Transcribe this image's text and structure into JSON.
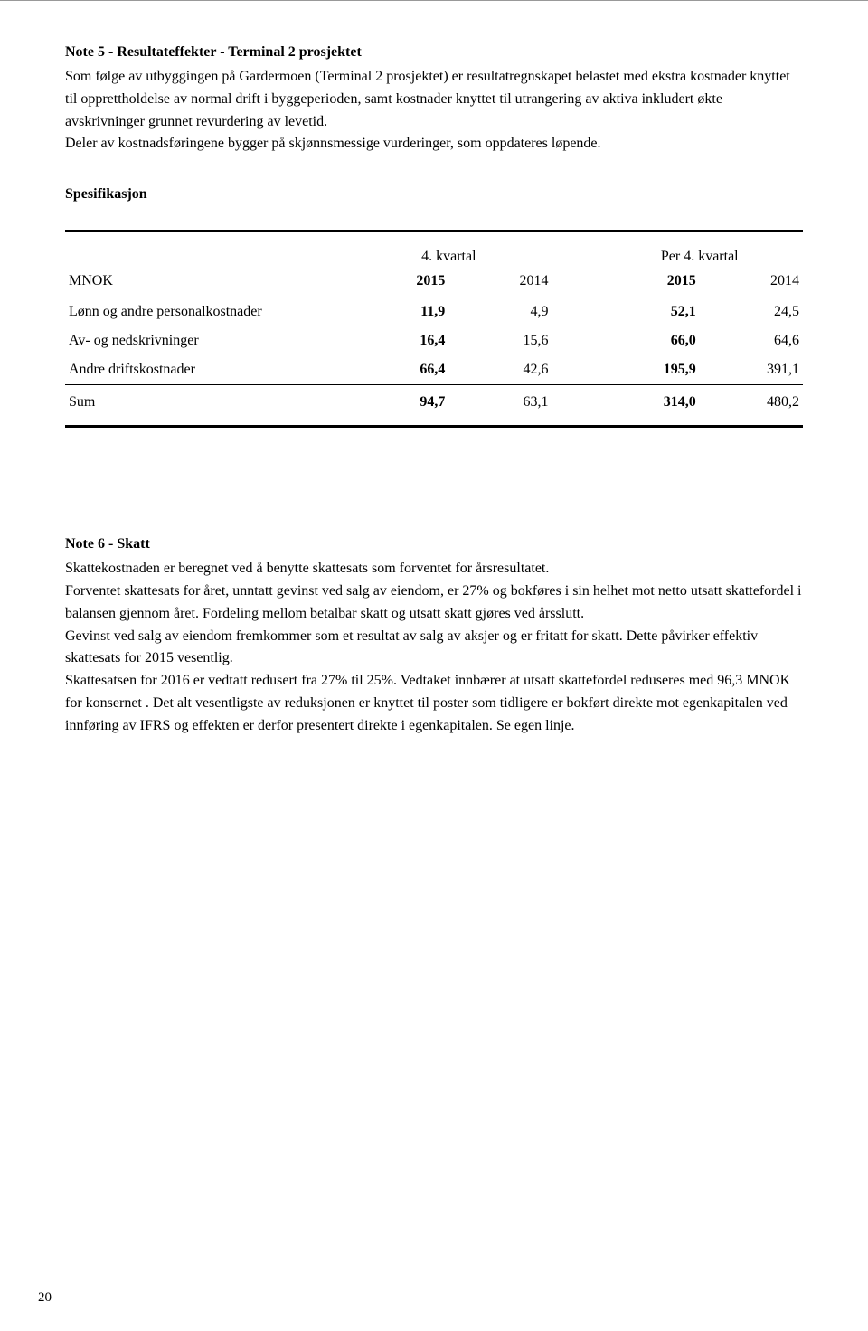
{
  "note5": {
    "heading": "Note 5 - Resultateffekter - Terminal 2 prosjektet",
    "para": "Som følge av utbyggingen på Gardermoen (Terminal 2 prosjektet) er resultatregnskapet belastet med ekstra kostnader knyttet til opprettholdelse av normal drift i byggeperioden, samt kostnader knyttet til utrangering av aktiva inkludert økte avskrivninger grunnet revurdering av levetid.",
    "para2": "Deler av kostnadsføringene bygger på skjønnsmessige vurderinger, som oppdateres løpende.",
    "spec_label": "Spesifikasjon"
  },
  "table": {
    "group1": "4. kvartal",
    "group2": "Per 4. kvartal",
    "mnok": "MNOK",
    "y2015": "2015",
    "y2014": "2014",
    "rows": [
      {
        "label": "Lønn og andre personalkostnader",
        "q15": "11,9",
        "q14": "4,9",
        "p15": "52,1",
        "p14": "24,5"
      },
      {
        "label": "Av- og nedskrivninger",
        "q15": "16,4",
        "q14": "15,6",
        "p15": "66,0",
        "p14": "64,6"
      },
      {
        "label": "Andre driftskostnader",
        "q15": "66,4",
        "q14": "42,6",
        "p15": "195,9",
        "p14": "391,1"
      }
    ],
    "sum": {
      "label": "Sum",
      "q15": "94,7",
      "q14": "63,1",
      "p15": "314,0",
      "p14": "480,2"
    }
  },
  "note6": {
    "heading": "Note 6 - Skatt",
    "p1": "Skattekostnaden er beregnet ved å benytte skattesats som forventet for årsresultatet.",
    "p2": "Forventet skattesats for året, unntatt gevinst ved salg av eiendom, er 27% og bokføres i sin helhet mot netto utsatt skattefordel i balansen gjennom året. Fordeling mellom betalbar skatt og utsatt skatt gjøres ved årsslutt.",
    "p3": "Gevinst ved salg av eiendom fremkommer som et resultat av salg av aksjer og er fritatt for skatt. Dette påvirker effektiv skattesats for 2015 vesentlig.",
    "p4": "Skattesatsen for 2016 er vedtatt redusert fra 27% til 25%. Vedtaket innbærer at utsatt skattefordel reduseres med 96,3 MNOK for konsernet . Det alt vesentligste av reduksjonen er knyttet til poster som tidligere er bokført direkte mot egenkapitalen ved innføring av IFRS og effekten er derfor presentert direkte i egenkapitalen. Se egen linje."
  },
  "page_number": "20"
}
